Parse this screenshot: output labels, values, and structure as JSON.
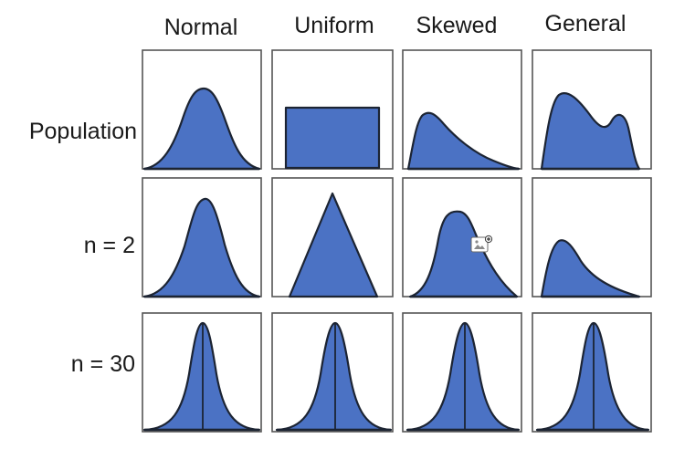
{
  "columns": [
    {
      "label": "Normal"
    },
    {
      "label": "Uniform"
    },
    {
      "label": "Skewed"
    },
    {
      "label": "General"
    }
  ],
  "rows": [
    {
      "label": "Population"
    },
    {
      "label": "n = 2"
    },
    {
      "label": "n = 30"
    }
  ],
  "colors": {
    "fill": "#4b72c4",
    "outline": "#1c2433",
    "frame": "#555555"
  },
  "overlay_icon": "image-add-icon"
}
